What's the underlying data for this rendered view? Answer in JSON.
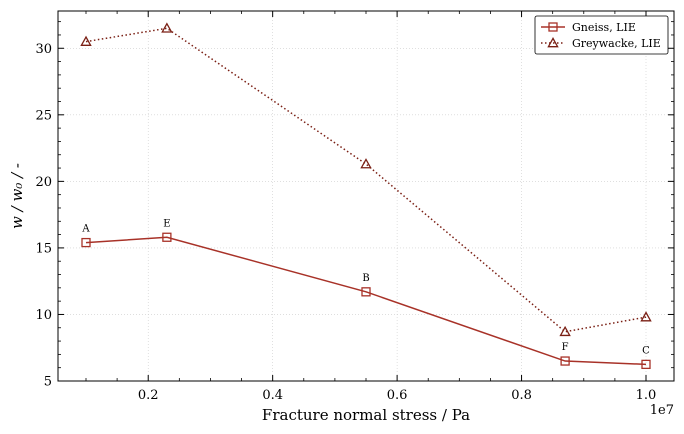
{
  "chart_data": {
    "type": "line",
    "xlabel": "Fracture normal stress / Pa",
    "ylabel": "w / w₀ / -",
    "x_offset_label": "1e7",
    "xlim": [
      0.055,
      1.045
    ],
    "ylim": [
      5,
      32.8
    ],
    "x_ticks": [
      0.2,
      0.4,
      0.6,
      0.8,
      1.0
    ],
    "x_tick_labels": [
      "0.2",
      "0.4",
      "0.6",
      "0.8",
      "1.0"
    ],
    "y_ticks": [
      5,
      10,
      15,
      20,
      25,
      30
    ],
    "y_tick_labels": [
      "5",
      "10",
      "15",
      "20",
      "25",
      "30"
    ],
    "grid": true,
    "legend_position": "top-right",
    "series": [
      {
        "name": "Gneiss, LIE",
        "marker": "square",
        "line_style": "solid",
        "color": "#a83228",
        "x": [
          0.1,
          0.23,
          0.55,
          0.87,
          1.0
        ],
        "y": [
          15.4,
          15.8,
          11.7,
          6.5,
          6.25
        ]
      },
      {
        "name": "Greywacke, LIE",
        "marker": "triangle",
        "line_style": "dotted",
        "color": "#7a1f14",
        "x": [
          0.1,
          0.23,
          0.55,
          0.87,
          1.0
        ],
        "y": [
          30.5,
          31.5,
          21.3,
          8.7,
          9.8
        ]
      }
    ],
    "annotations": [
      {
        "text": "A",
        "x": 0.1,
        "y": 15.4
      },
      {
        "text": "E",
        "x": 0.23,
        "y": 15.8
      },
      {
        "text": "B",
        "x": 0.55,
        "y": 11.7
      },
      {
        "text": "F",
        "x": 0.87,
        "y": 6.5
      },
      {
        "text": "C",
        "x": 1.0,
        "y": 6.25
      }
    ]
  }
}
